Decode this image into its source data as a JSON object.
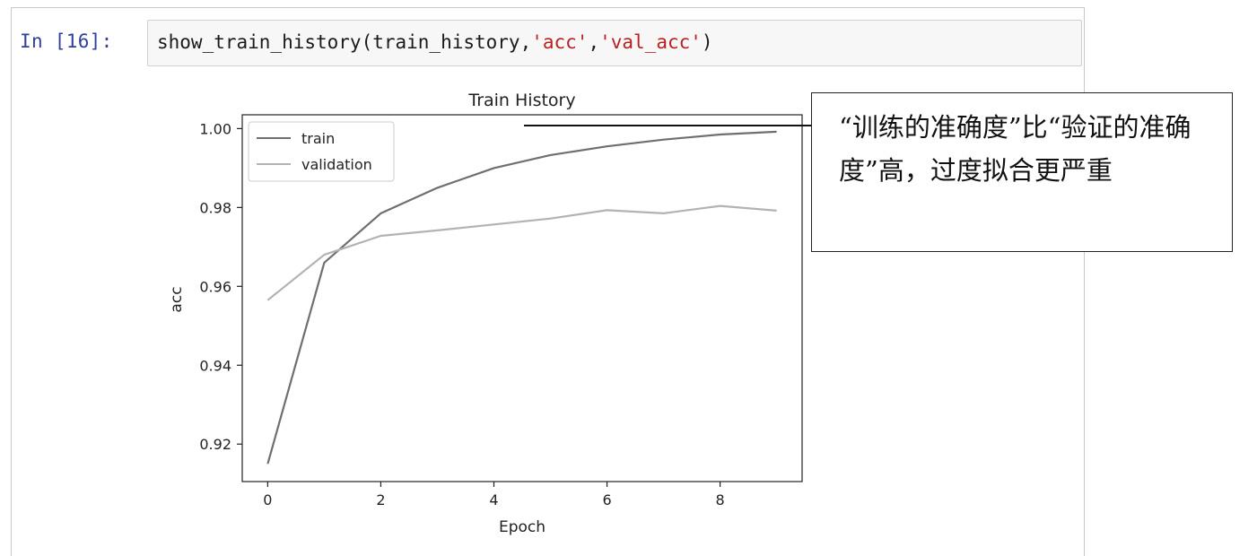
{
  "cell": {
    "prompt": "In [16]:",
    "code": {
      "func": "show_train_history(train_history,",
      "arg1": "'acc'",
      "comma": ",",
      "arg2": "'val_acc'",
      "close": ")"
    }
  },
  "annotation": {
    "text": "“训练的准确度”比“验证的准确度”高，过度拟合更严重"
  },
  "colors": {
    "train": "#6f6f6f",
    "validation": "#b3b3b3",
    "prompt": "#303f9f"
  },
  "chart_data": {
    "type": "line",
    "title": "Train History",
    "xlabel": "Epoch",
    "ylabel": "acc",
    "xlim": [
      -0.45,
      9.45
    ],
    "ylim": [
      0.9105,
      1.0035
    ],
    "xticks": [
      0,
      2,
      4,
      6,
      8
    ],
    "yticks": [
      0.92,
      0.94,
      0.96,
      0.98,
      1.0
    ],
    "ytick_labels": [
      "0.92",
      "0.94",
      "0.96",
      "0.98",
      "1.00"
    ],
    "x": [
      0,
      1,
      2,
      3,
      4,
      5,
      6,
      7,
      8,
      9
    ],
    "series": [
      {
        "name": "train",
        "values": [
          0.915,
          0.966,
          0.9785,
          0.985,
          0.99,
          0.9933,
          0.9955,
          0.9972,
          0.9985,
          0.9992
        ]
      },
      {
        "name": "validation",
        "values": [
          0.9565,
          0.968,
          0.9728,
          0.9742,
          0.9757,
          0.9772,
          0.9793,
          0.9785,
          0.9804,
          0.9792
        ]
      }
    ],
    "legend": "upper-left",
    "grid": false
  }
}
